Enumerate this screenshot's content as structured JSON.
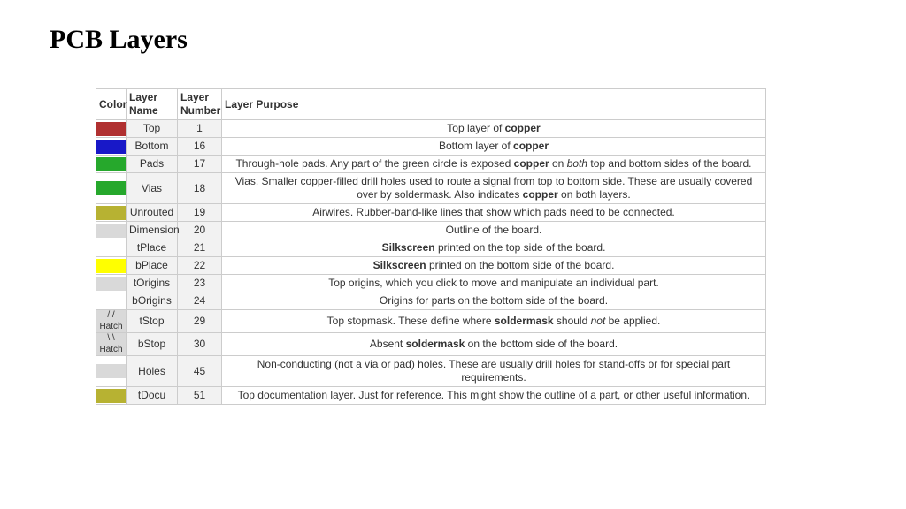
{
  "page": {
    "title": "PCB Layers"
  },
  "table": {
    "headers": {
      "color": "Color",
      "name": "Layer Name",
      "number": "Layer Number",
      "purpose": "Layer Purpose"
    },
    "name_bg": "#f2f2f2",
    "num_bg": "#f2f2f2",
    "border_color": "#cccccc",
    "rows": [
      {
        "color_swatch": "#b03030",
        "color_label": "",
        "name": "Top",
        "number": "1",
        "purpose_html": "Top layer of <b>copper</b>"
      },
      {
        "color_swatch": "#1818c8",
        "color_label": "",
        "name": "Bottom",
        "number": "16",
        "purpose_html": "Bottom layer of <b>copper</b>"
      },
      {
        "color_swatch": "#26a82c",
        "color_label": "",
        "name": "Pads",
        "number": "17",
        "purpose_html": "Through-hole pads. Any part of the green circle is exposed <b>copper</b> on <i>both</i> top and bottom sides of the board."
      },
      {
        "color_swatch": "#26a82c",
        "color_label": "",
        "name": "Vias",
        "number": "18",
        "purpose_html": "Vias. Smaller copper-filled drill holes used to route a signal from top to bottom side. These are usually covered over by soldermask. Also indicates <b>copper</b> on both layers."
      },
      {
        "color_swatch": "#b7b232",
        "color_label": "",
        "name": "Unrouted",
        "number": "19",
        "purpose_html": "Airwires. Rubber-band-like lines that show which pads need to be connected."
      },
      {
        "color_swatch": "#d9d9d9",
        "color_label": "",
        "name": "Dimension",
        "number": "20",
        "purpose_html": "Outline of the board."
      },
      {
        "color_swatch": "#ffffff",
        "color_label": "",
        "name": "tPlace",
        "number": "21",
        "purpose_html": "<b>Silkscreen</b> printed on the top side of the board."
      },
      {
        "color_swatch": "#ffff00",
        "color_label": "",
        "name": "bPlace",
        "number": "22",
        "purpose_html": "<b>Silkscreen</b> printed on the bottom side of the board."
      },
      {
        "color_swatch": "#d9d9d9",
        "color_label": "",
        "name": "tOrigins",
        "number": "23",
        "purpose_html": "Top origins, which you click to move and manipulate an individual part."
      },
      {
        "color_swatch": "#ffffff",
        "color_label": "",
        "name": "bOrigins",
        "number": "24",
        "purpose_html": "Origins for parts on the bottom side of the board."
      },
      {
        "color_swatch": "#d9d9d9",
        "color_label": "/ / Hatch",
        "name": "tStop",
        "number": "29",
        "purpose_html": "Top stopmask. These define where <b>soldermask</b> should <i>not</i> be applied."
      },
      {
        "color_swatch": "#d9d9d9",
        "color_label": "\\ \\ Hatch",
        "name": "bStop",
        "number": "30",
        "purpose_html": "Absent <b>soldermask</b> on the bottom side of the board."
      },
      {
        "color_swatch": "#d9d9d9",
        "color_label": "",
        "name": "Holes",
        "number": "45",
        "purpose_html": "Non-conducting (not a via or pad) holes. These are usually drill holes for stand-offs or for special part requirements."
      },
      {
        "color_swatch": "#b7b232",
        "color_label": "",
        "name": "tDocu",
        "number": "51",
        "purpose_html": "Top documentation layer. Just for reference. This might show the outline of a part, or other useful information."
      }
    ]
  }
}
